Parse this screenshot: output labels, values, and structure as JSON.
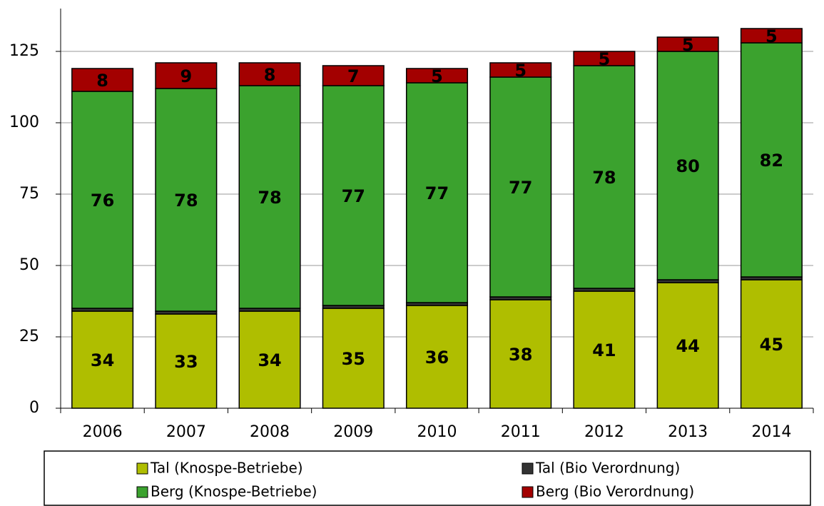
{
  "chart_data": {
    "type": "stacked_bar",
    "categories": [
      "2006",
      "2007",
      "2008",
      "2009",
      "2010",
      "2011",
      "2012",
      "2013",
      "2014"
    ],
    "series": [
      {
        "name": "Tal (Knospe-Betriebe)",
        "color": "#afbe00",
        "values": [
          34,
          33,
          34,
          35,
          36,
          38,
          41,
          44,
          45
        ]
      },
      {
        "name": "Tal (Bio Verordnung)",
        "color": "#333333",
        "values": [
          1,
          1,
          1,
          1,
          1,
          1,
          1,
          1,
          1
        ]
      },
      {
        "name": "Berg (Knospe-Betriebe)",
        "color": "#3ba22e",
        "values": [
          76,
          78,
          78,
          77,
          77,
          77,
          78,
          80,
          82
        ]
      },
      {
        "name": "Berg (Bio Verordnung)",
        "color": "#a30000",
        "values": [
          8,
          9,
          8,
          7,
          5,
          5,
          5,
          5,
          5
        ]
      }
    ],
    "ylim": [
      0,
      140
    ],
    "yticks": [
      0,
      25,
      50,
      75,
      100,
      125
    ],
    "grid": true
  }
}
